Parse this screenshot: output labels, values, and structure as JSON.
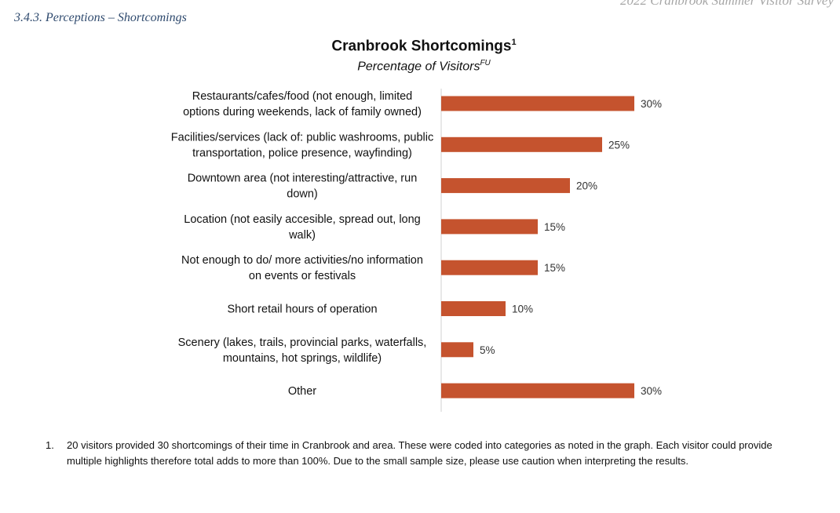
{
  "document": {
    "header": "2022 Cranbrook Summer Visitor Survey",
    "section_title": "3.4.3. Perceptions – Shortcomings"
  },
  "chart_data": {
    "type": "bar",
    "orientation": "horizontal",
    "title": "Cranbrook Shortcomings",
    "title_superscript": "1",
    "subtitle": "Percentage of Visitors",
    "subtitle_superscript": "FU",
    "bar_color": "#c5532e",
    "xlim": [
      0,
      100
    ],
    "categories": [
      [
        "Restaurants/cafes/food (not enough, limited",
        "options during weekends, lack of family owned)"
      ],
      [
        "Facilities/services (lack of: public washrooms, public",
        "transportation, police presence, wayfinding)"
      ],
      [
        "Downtown area (not interesting/attractive, run",
        "down)"
      ],
      [
        "Location (not easily accesible, spread out, long",
        "walk)"
      ],
      [
        "Not enough to do/ more activities/no information",
        "on events or festivals"
      ],
      [
        "Short retail hours of operation"
      ],
      [
        "Scenery (lakes, trails, provincial parks, waterfalls,",
        "mountains, hot springs, wildlife)"
      ],
      [
        "Other"
      ]
    ],
    "values": [
      30,
      25,
      20,
      15,
      15,
      10,
      5,
      30
    ],
    "value_labels": [
      "30%",
      "25%",
      "20%",
      "15%",
      "15%",
      "10%",
      "5%",
      "30%"
    ]
  },
  "footnote": {
    "number": "1.",
    "text": "20 visitors provided 30 shortcomings of their time in Cranbrook and area. These were coded into categories as noted in the graph. Each visitor could provide multiple highlights therefore total adds to more than 100%. Due to the small sample size, please use caution when interpreting the results."
  }
}
